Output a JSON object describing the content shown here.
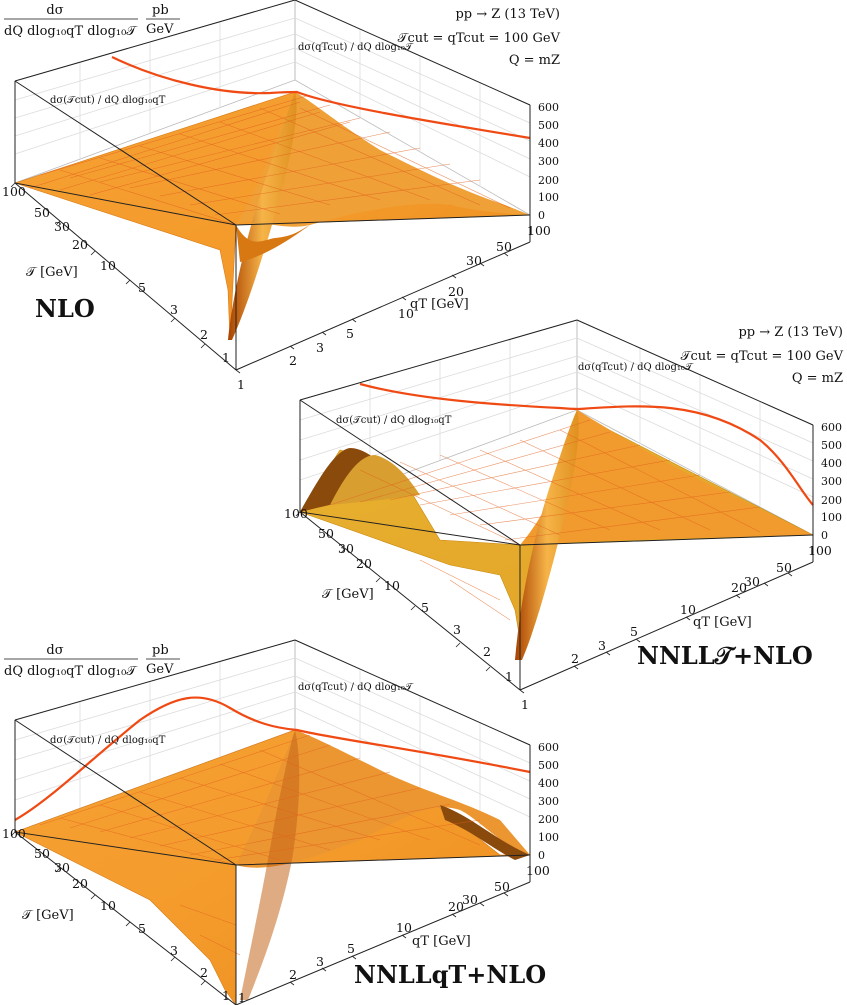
{
  "chart_data": [
    {
      "type": "surface3d",
      "panel": "top-left",
      "title": "NLO",
      "zlabel": "dσ / dQ dlog10 qT dlog10 𝒯 [pb/GeV]",
      "z_label_parts": {
        "num": "dσ",
        "den": "dQ dlog₁₀qT dlog₁₀𝒯",
        "unit_num": "pb",
        "unit_den": "GeV"
      },
      "xlabel": "qT [GeV]",
      "ylabel": "𝒯 [GeV]",
      "x_ticks": [
        "1",
        "2",
        "3",
        "5",
        "10",
        "20",
        "30",
        "50",
        "100"
      ],
      "y_ticks": [
        "1",
        "2",
        "3",
        "5",
        "10",
        "20",
        "30",
        "50",
        "100"
      ],
      "z_ticks": [
        "0",
        "100",
        "200",
        "300",
        "400",
        "500",
        "600"
      ],
      "xlim": [
        1,
        100
      ],
      "ylim": [
        1,
        100
      ],
      "zlim": [
        0,
        600
      ],
      "x_scale": "log",
      "y_scale": "log",
      "annotations": {
        "process": "pp → Z (13 TeV)",
        "cut": "𝒯cut = qTcut = 100 GeV",
        "scale": "Q = mZ",
        "curve_qT": "dσ(qTcut) / dQ dlog₁₀𝒯",
        "curve_T": "dσ(𝒯cut) / dQ dlog₁₀qT"
      },
      "curve_T_cut": {
        "x": [
          1,
          3,
          10,
          30,
          100
        ],
        "y": [
          100,
          100,
          100,
          100,
          100
        ],
        "z": [
          580,
          520,
          470,
          460,
          480
        ]
      },
      "curve_qT_cut": {
        "x": [
          100,
          100,
          100,
          100,
          100
        ],
        "y": [
          1,
          3,
          10,
          30,
          100
        ],
        "z": [
          380,
          420,
          450,
          470,
          480
        ]
      }
    },
    {
      "type": "surface3d",
      "panel": "middle-right",
      "title": "NNLL𝒯+NLO",
      "xlabel": "qT [GeV]",
      "ylabel": "𝒯 [GeV]",
      "x_ticks": [
        "1",
        "2",
        "3",
        "5",
        "10",
        "20",
        "30",
        "50",
        "100"
      ],
      "y_ticks": [
        "1",
        "2",
        "3",
        "5",
        "10",
        "20",
        "30",
        "50",
        "100"
      ],
      "z_ticks": [
        "0",
        "100",
        "200",
        "300",
        "400",
        "500",
        "600"
      ],
      "xlim": [
        1,
        100
      ],
      "ylim": [
        1,
        100
      ],
      "zlim": [
        0,
        600
      ],
      "x_scale": "log",
      "y_scale": "log",
      "annotations": {
        "process": "pp → Z (13 TeV)",
        "cut": "𝒯cut = qTcut = 100 GeV",
        "scale": "Q = mZ",
        "curve_qT": "dσ(qTcut) / dQ dlog₁₀𝒯",
        "curve_T": "dσ(𝒯cut) / dQ dlog₁₀qT"
      },
      "curve_T_cut": {
        "x": [
          1,
          3,
          10,
          30,
          100
        ],
        "y": [
          100,
          100,
          100,
          100,
          100
        ],
        "z": [
          560,
          540,
          500,
          470,
          480
        ]
      },
      "curve_qT_cut": {
        "x": [
          100,
          100,
          100,
          100,
          100
        ],
        "y": [
          1,
          3,
          10,
          30,
          100
        ],
        "z": [
          150,
          300,
          430,
          470,
          480
        ]
      }
    },
    {
      "type": "surface3d",
      "panel": "bottom-left",
      "title": "NNLLqT+NLO",
      "zlabel": "dσ / dQ dlog10 qT dlog10 𝒯 [pb/GeV]",
      "z_label_parts": {
        "num": "dσ",
        "den": "dQ dlog₁₀qT dlog₁₀𝒯",
        "unit_num": "pb",
        "unit_den": "GeV"
      },
      "xlabel": "qT [GeV]",
      "ylabel": "𝒯 [GeV]",
      "x_ticks": [
        "1",
        "2",
        "3",
        "5",
        "10",
        "20",
        "30",
        "50",
        "100"
      ],
      "y_ticks": [
        "1",
        "2",
        "3",
        "5",
        "10",
        "20",
        "30",
        "50",
        "100"
      ],
      "z_ticks": [
        "0",
        "100",
        "200",
        "300",
        "400",
        "500",
        "600"
      ],
      "xlim": [
        1,
        100
      ],
      "ylim": [
        1,
        100
      ],
      "zlim": [
        0,
        600
      ],
      "x_scale": "log",
      "y_scale": "log",
      "annotations": {
        "curve_qT": "dσ(qTcut) / dQ dlog₁₀𝒯",
        "curve_T": "dσ(𝒯cut) / dQ dlog₁₀qT"
      },
      "curve_T_cut": {
        "x": [
          1,
          3,
          10,
          30,
          100
        ],
        "y": [
          100,
          100,
          100,
          100,
          100
        ],
        "z": [
          150,
          480,
          560,
          500,
          470
        ]
      },
      "curve_qT_cut": {
        "x": [
          100,
          100,
          100,
          100,
          100
        ],
        "y": [
          1,
          3,
          10,
          30,
          100
        ],
        "z": [
          380,
          420,
          450,
          470,
          480
        ]
      }
    }
  ],
  "colors": {
    "surface": "#f39c2b",
    "surface_dark": "#c95a00",
    "mesh": "#e8591c",
    "curve": "#f04a14",
    "frame": "#222222",
    "grid": "#d8d8d8"
  }
}
